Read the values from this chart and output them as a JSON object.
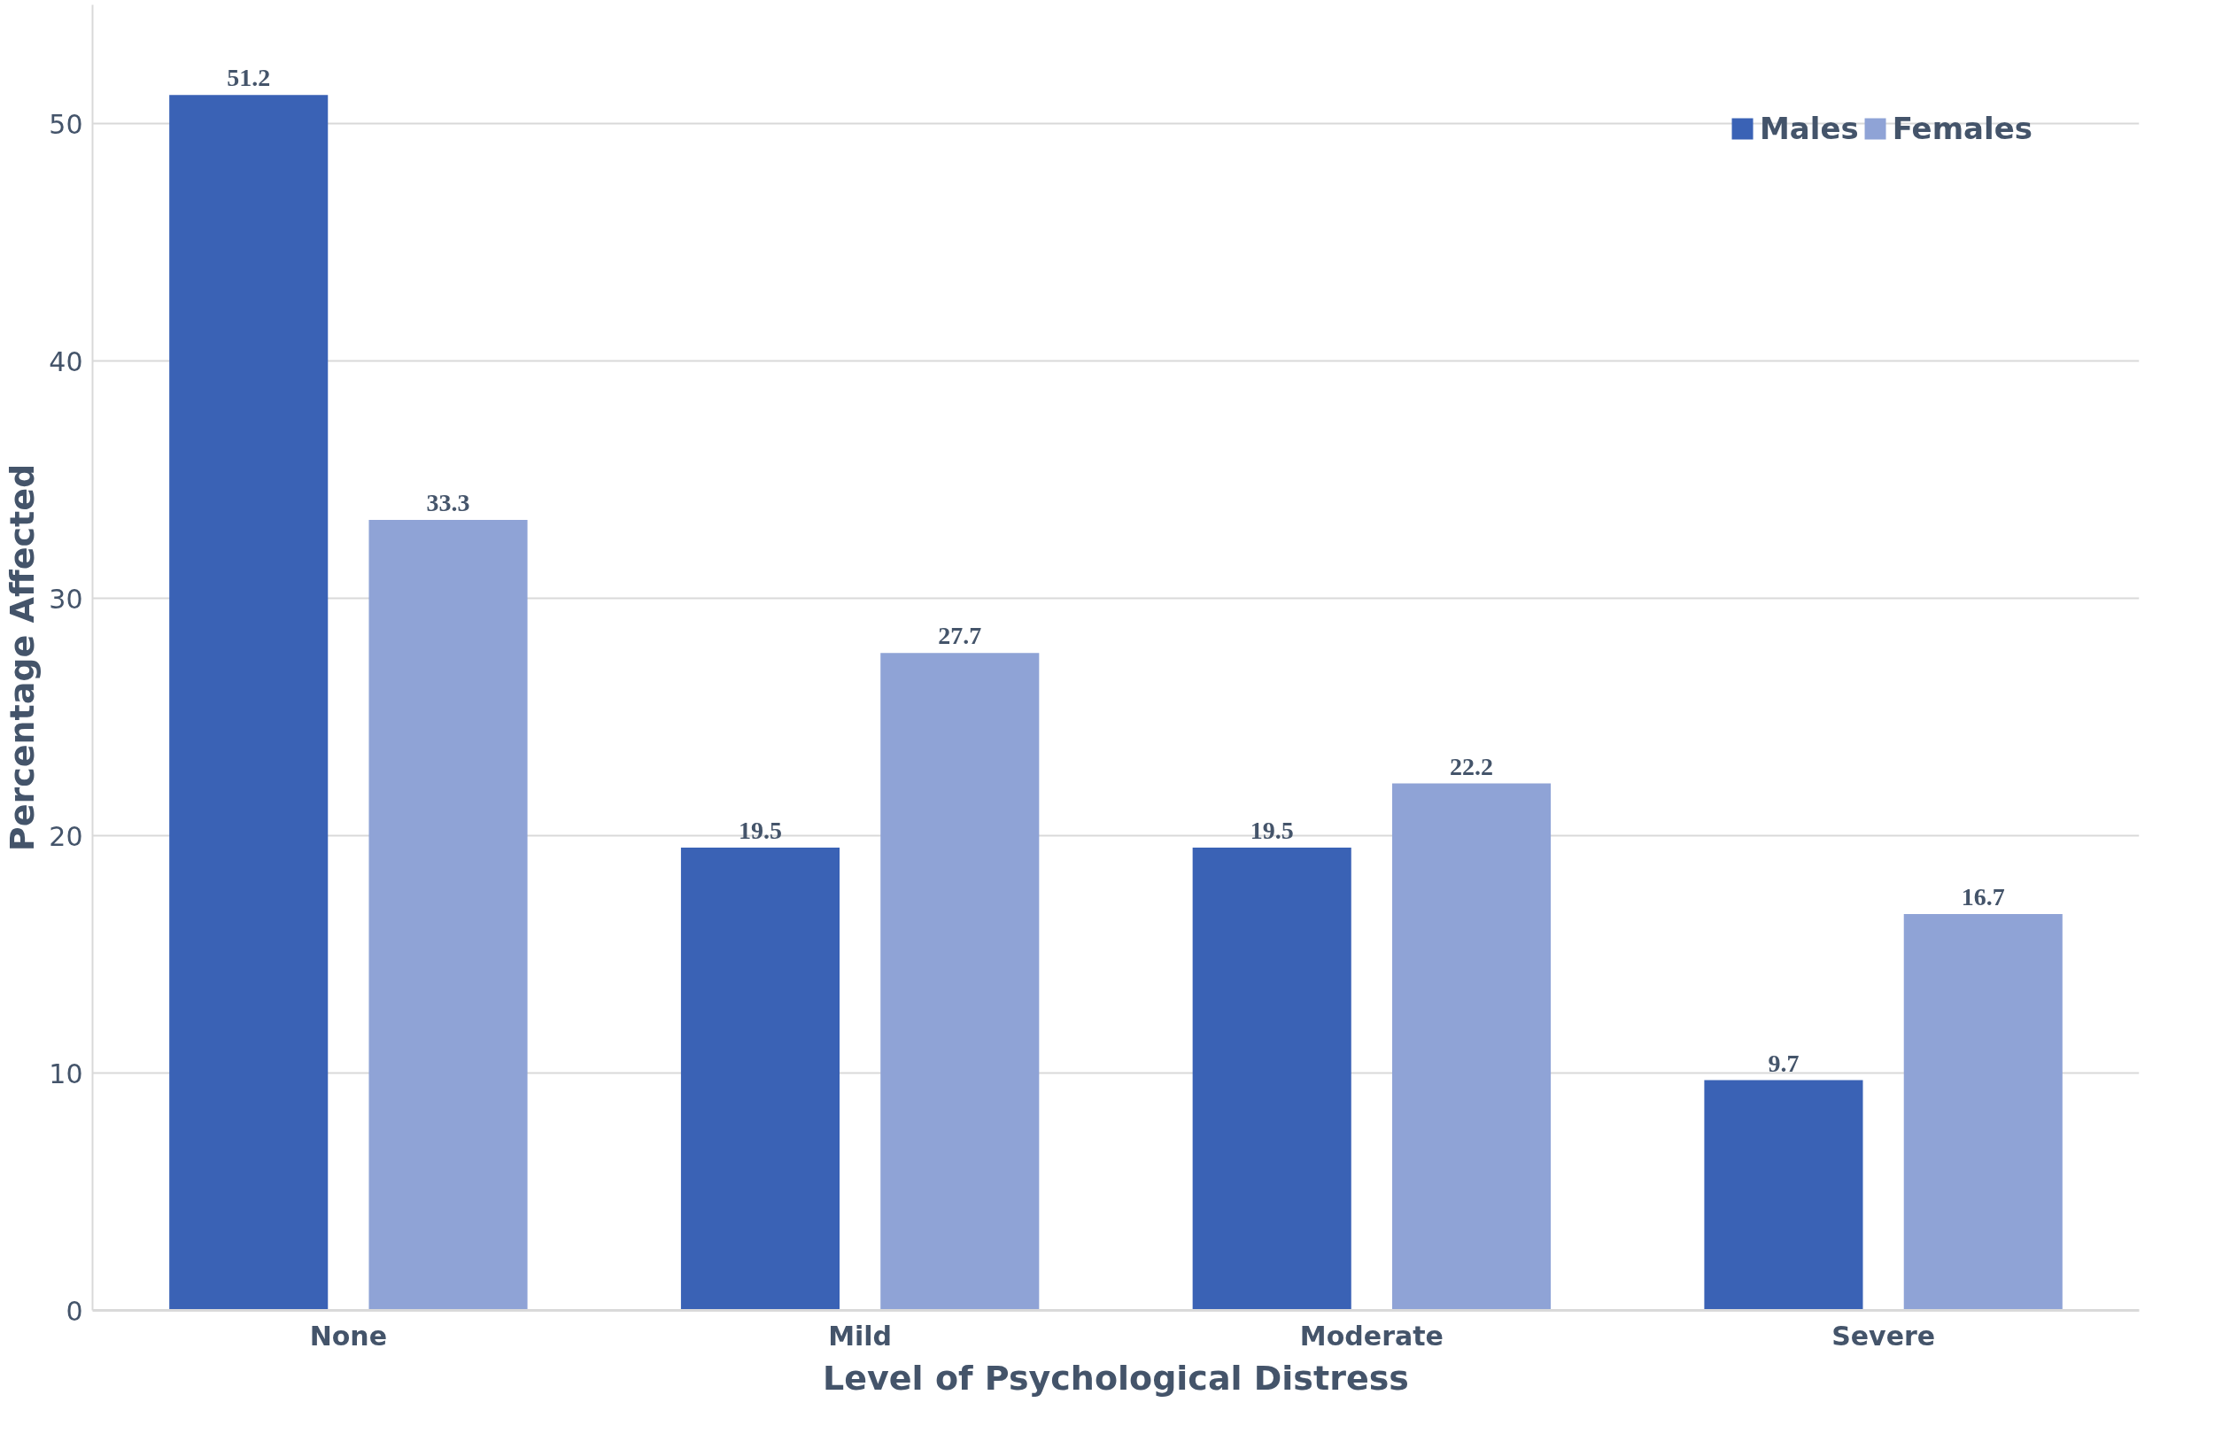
{
  "chart_data": {
    "type": "bar",
    "xlabel": "Level of Psychological Distress",
    "ylabel": "Percentage Affected",
    "categories": [
      "None",
      "Mild",
      "Moderate",
      "Severe"
    ],
    "series": [
      {
        "name": "Males",
        "color": "#3a62b5",
        "values": [
          51.2,
          19.5,
          19.5,
          9.7
        ]
      },
      {
        "name": "Females",
        "color": "#8fa3d6",
        "values": [
          33.3,
          27.7,
          22.2,
          16.7
        ]
      }
    ],
    "ylim": [
      0,
      55
    ],
    "yticks": [
      0,
      10,
      20,
      30,
      40,
      50
    ],
    "grid": "y",
    "legend": "top right",
    "data_labels": true
  }
}
